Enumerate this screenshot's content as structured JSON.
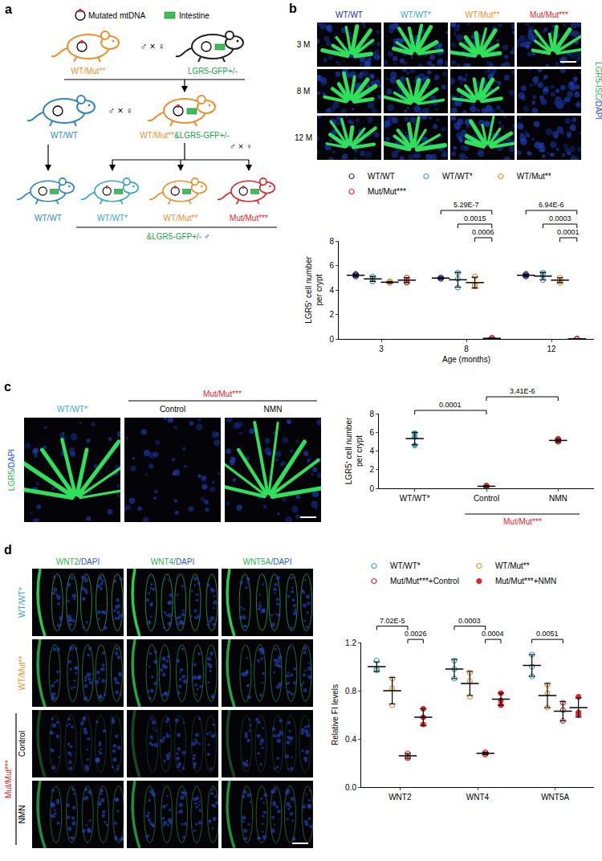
{
  "figure": {
    "a": {
      "label": "a",
      "key": [
        {
          "text": "Mutated mtDNA"
        },
        {
          "text": "Intestine"
        }
      ],
      "sex": {
        "male": "♂",
        "female": "♀",
        "cross": "×"
      },
      "cross1": {
        "left": {
          "text": "WT/Mut**",
          "color": "#ec8f2c"
        },
        "right": {
          "text": "LGR5-GFP+/-",
          "color": "#1aa34a"
        }
      },
      "cross2": {
        "left": {
          "text": "WT/WT",
          "color": "#2f86c6"
        },
        "right": [
          {
            "text": "WT/Mut**",
            "color": "#ec8f2c"
          },
          {
            "text": "&LGR5-GFP+/-",
            "color": "#1aa34a"
          }
        ]
      },
      "offspring": [
        {
          "text": "WT/WT",
          "color": "#2f86c6"
        },
        {
          "text": "WT/WT*",
          "color": "#35a7c4"
        },
        {
          "text": "WT/Mut**",
          "color": "#ec8f2c"
        },
        {
          "text": "Mut/Mut***",
          "color": "#e3262b"
        }
      ],
      "offspring_note": {
        "text": "&LGR5-GFP+/-",
        "color": "#1aa34a"
      }
    },
    "b": {
      "label": "b",
      "columns": [
        {
          "text": "WT/WT",
          "color": "#2b2f9e"
        },
        {
          "text": "WT/WT*",
          "color": "#35a7c4"
        },
        {
          "text": "WT/Mut**",
          "color": "#ec8f2c"
        },
        {
          "text": "Mut/Mut***",
          "color": "#e3262b"
        }
      ],
      "rows": [
        "3 M",
        "8 M",
        "12 M"
      ],
      "stain": [
        {
          "text": "LGR5-ISC",
          "color": "#1fb84a"
        },
        {
          "text": "/DAPI",
          "color": "#2a5bd7"
        }
      ]
    },
    "c": {
      "label": "c",
      "columns": [
        {
          "text": "WT/WT*",
          "color": "#35a7c4"
        },
        {
          "text": "Control",
          "color": "#000000"
        },
        {
          "text": "NMN",
          "color": "#000000"
        }
      ],
      "group": {
        "text": "Mut/Mut***",
        "color": "#e3262b"
      },
      "stain": [
        {
          "text": "LGR5",
          "color": "#1fb84a"
        },
        {
          "text": "/DAPI",
          "color": "#2a5bd7"
        }
      ]
    },
    "d": {
      "label": "d",
      "columns": [
        [
          {
            "text": "WNT2",
            "color": "#1fb84a"
          },
          {
            "text": "/DAPI",
            "color": "#2a5bd7"
          }
        ],
        [
          {
            "text": "WNT4",
            "color": "#1fb84a"
          },
          {
            "text": "/DAPI",
            "color": "#2a5bd7"
          }
        ],
        [
          {
            "text": "WNT5A",
            "color": "#1fb84a"
          },
          {
            "text": "/DAPI",
            "color": "#2a5bd7"
          }
        ]
      ],
      "rows": [
        {
          "text": "WT/WT*",
          "color": "#35a7c4"
        },
        {
          "text": "WT/Mut**",
          "color": "#ec8f2c"
        },
        {
          "text": "Control",
          "color": "#000000"
        },
        {
          "text": "NMN",
          "color": "#000000"
        }
      ],
      "row_group": {
        "text": "Mut/Mut***",
        "color": "#e3262b"
      }
    }
  },
  "chart_data": [
    {
      "type": "scatter",
      "categories": [
        "3",
        "8",
        "12"
      ],
      "xlabel": "Age (months)",
      "ylabel": [
        "LGR5⁺ cell number",
        "per crypt"
      ],
      "ylim": [
        0,
        8
      ],
      "yticks": [
        0,
        2,
        4,
        6,
        8
      ],
      "grid": false,
      "legend": "top",
      "marker": "open circle",
      "series": [
        {
          "name": "WT/WT",
          "color": "#2b2f9e",
          "values": [
            [
              5.3,
              5.1,
              5.2
            ],
            [
              5.0,
              5.0,
              4.9
            ],
            [
              5.2,
              5.1,
              5.3
            ]
          ],
          "mean": [
            5.2,
            4.97,
            5.2
          ],
          "sd": [
            0.1,
            0.06,
            0.1
          ]
        },
        {
          "name": "WT/WT*",
          "color": "#35a7c4",
          "values": [
            [
              4.9,
              5.1,
              4.7
            ],
            [
              5.4,
              4.2,
              4.9
            ],
            [
              5.4,
              4.8,
              5.2
            ]
          ],
          "mean": [
            4.9,
            4.83,
            5.13
          ],
          "sd": [
            0.2,
            0.6,
            0.31
          ]
        },
        {
          "name": "WT/Mut**",
          "color": "#ec8f2c",
          "values": [
            [
              4.6,
              4.7,
              4.6
            ],
            [
              4.4,
              5.1,
              4.3
            ],
            [
              5.0,
              4.8,
              4.6
            ]
          ],
          "mean": [
            4.63,
            4.6,
            4.8
          ],
          "sd": [
            0.06,
            0.44,
            0.2
          ]
        },
        {
          "name": "Mut/Mut***",
          "color": "#e3262b",
          "values": [
            [
              4.6,
              5.0,
              4.8
            ],
            [
              0.1,
              0.0,
              0.05
            ],
            [
              0.0,
              0.0,
              0.02
            ]
          ],
          "mean": [
            4.8,
            0.05,
            0.01
          ],
          "sd": [
            0.2,
            0.05,
            0.01
          ]
        }
      ],
      "annotations": [
        {
          "text": "5.29E-7",
          "category": "8",
          "from": "WT/WT",
          "to": "Mut/Mut***"
        },
        {
          "text": "0.0015",
          "category": "8",
          "from": "WT/WT*",
          "to": "Mut/Mut***"
        },
        {
          "text": "0.0006",
          "category": "8",
          "from": "WT/Mut**",
          "to": "Mut/Mut***"
        },
        {
          "text": "6.94E-6",
          "category": "12",
          "from": "WT/WT",
          "to": "Mut/Mut***"
        },
        {
          "text": "0.0003",
          "category": "12",
          "from": "WT/WT*",
          "to": "Mut/Mut***"
        },
        {
          "text": "0.0001",
          "category": "12",
          "from": "WT/Mut**",
          "to": "Mut/Mut***"
        }
      ]
    },
    {
      "type": "scatter",
      "categories": [
        "WT/WT*",
        "Control",
        "NMN"
      ],
      "ylabel": [
        "LGR5⁺ cell number",
        "per crypt"
      ],
      "ylim": [
        0,
        8
      ],
      "yticks": [
        0,
        2,
        4,
        6,
        8
      ],
      "grid": false,
      "marker": "circle",
      "colors": [
        "#35a7c4",
        "#e3262b",
        "#e3262b"
      ],
      "values": [
        [
          5.9,
          4.6,
          5.5
        ],
        [
          0.3,
          0.2,
          0.15
        ],
        [
          5.0,
          5.3,
          5.1
        ]
      ],
      "mean": [
        5.33,
        0.22,
        5.13
      ],
      "sd": [
        0.66,
        0.08,
        0.15
      ],
      "group": {
        "text": "Mut/Mut***",
        "categories": [
          "Control",
          "NMN"
        ],
        "color": "#e3262b"
      },
      "annotations": [
        {
          "text": "0.0001",
          "from": "WT/WT*",
          "to": "Control"
        },
        {
          "text": "3.41E-6",
          "from": "Control",
          "to": "NMN"
        }
      ]
    },
    {
      "type": "scatter",
      "categories": [
        "WNT2",
        "WNT4",
        "WNT5A"
      ],
      "ylabel": [
        "Relative FI levels"
      ],
      "ylim": [
        0,
        1.2
      ],
      "yticks": [
        {
          "value": 0,
          "label": "0.0"
        },
        0.4,
        0.8,
        1.2
      ],
      "grid": false,
      "legend": "top",
      "series": [
        {
          "name": "WT/WT*",
          "color": "#35a7c4",
          "marker": "open circle",
          "values": [
            [
              1.05,
              0.98,
              0.97
            ],
            [
              1.05,
              0.98,
              0.9
            ],
            [
              1.1,
              1.0,
              0.92
            ]
          ],
          "mean": [
            1.0,
            0.98,
            1.01
          ],
          "sd": [
            0.04,
            0.08,
            0.09
          ]
        },
        {
          "name": "WT/Mut**",
          "color": "#ec8f2c",
          "marker": "open circle",
          "values": [
            [
              0.9,
              0.82,
              0.68
            ],
            [
              0.95,
              0.88,
              0.75
            ],
            [
              0.85,
              0.78,
              0.66
            ]
          ],
          "mean": [
            0.8,
            0.86,
            0.76
          ],
          "sd": [
            0.11,
            0.1,
            0.1
          ]
        },
        {
          "name": "Mut/Mut***+Control",
          "color": "#e3262b",
          "marker": "open circle",
          "values": [
            [
              0.28,
              0.25,
              0.24
            ],
            [
              0.29,
              0.28,
              0.27
            ],
            [
              0.7,
              0.64,
              0.55
            ]
          ],
          "mean": [
            0.26,
            0.28,
            0.63
          ],
          "sd": [
            0.02,
            0.01,
            0.08
          ]
        },
        {
          "name": "Mut/Mut***+NMN",
          "color": "#e3262b",
          "marker": "circle",
          "values": [
            [
              0.65,
              0.58,
              0.52
            ],
            [
              0.78,
              0.72,
              0.68
            ],
            [
              0.75,
              0.62,
              0.6
            ]
          ],
          "mean": [
            0.58,
            0.73,
            0.66
          ],
          "sd": [
            0.07,
            0.05,
            0.08
          ]
        }
      ],
      "annotations": [
        {
          "text": "7.02E-5",
          "category": "WNT2",
          "from": "WT/WT*",
          "to": "Mut/Mut***+Control"
        },
        {
          "text": "0.0026",
          "category": "WNT2",
          "from": "Mut/Mut***+Control",
          "to": "Mut/Mut***+NMN"
        },
        {
          "text": "0.0003",
          "category": "WNT4",
          "from": "WT/WT*",
          "to": "Mut/Mut***+Control"
        },
        {
          "text": "0.0004",
          "category": "WNT4",
          "from": "Mut/Mut***+Control",
          "to": "Mut/Mut***+NMN"
        },
        {
          "text": "0.0051",
          "category": "WNT5A",
          "from": "WT/WT*",
          "to": "Mut/Mut***+Control"
        }
      ]
    }
  ]
}
